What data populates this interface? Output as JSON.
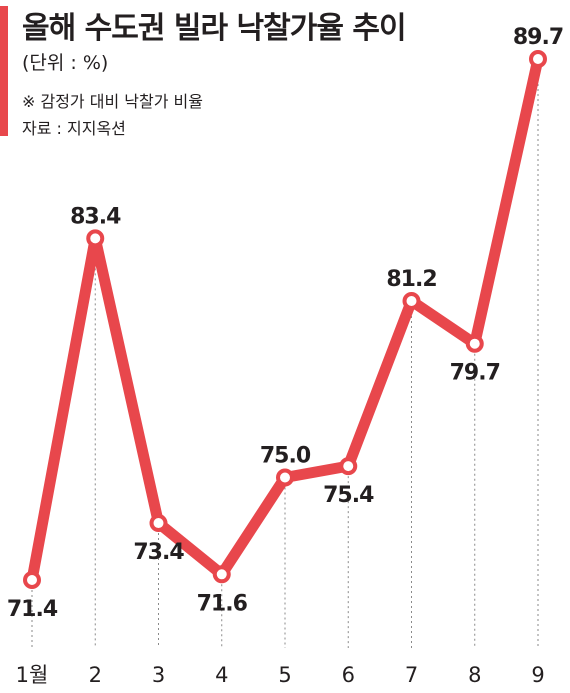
{
  "title": "올해 수도권 빌라 낙찰가율 추이",
  "unit": "(단위 : %)",
  "note": "※ 감정가 대비 낙찰가 비율",
  "source": "자료 : 지지옥션",
  "colors": {
    "line": "#e8474c",
    "text": "#231f20",
    "marker_fill": "#ffffff"
  },
  "chart_data": {
    "type": "line",
    "title": "올해 수도권 빌라 낙찰가율 추이",
    "xlabel": "",
    "ylabel": "",
    "categories": [
      "1월",
      "2",
      "3",
      "4",
      "5",
      "6",
      "7",
      "8",
      "9"
    ],
    "values": [
      71.4,
      83.4,
      73.4,
      71.6,
      75.0,
      75.4,
      81.2,
      79.7,
      89.7
    ],
    "value_labels": [
      "71.4",
      "83.4",
      "73.4",
      "71.6",
      "75.0",
      "75.4",
      "81.2",
      "79.7",
      "89.7"
    ],
    "label_position": [
      "below",
      "above",
      "below",
      "below",
      "above",
      "below",
      "above",
      "below",
      "above"
    ],
    "ylim": [
      71.4,
      89.7
    ],
    "grid": false,
    "legend": "none"
  }
}
